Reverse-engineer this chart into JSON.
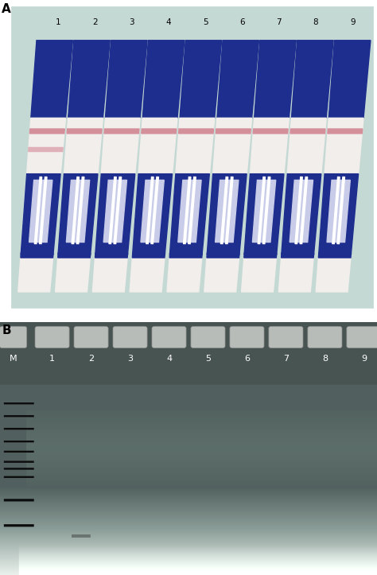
{
  "panel_A_label": "A",
  "panel_B_label": "B",
  "bg_color_A": "#c5d9d4",
  "strip_numbers": [
    "1",
    "2",
    "3",
    "4",
    "5",
    "6",
    "7",
    "8",
    "9"
  ],
  "strip_blue": "#1e2e8e",
  "strip_white": "#f2eeec",
  "strip_pink1": "#d4909a",
  "strip_pink2": "#e0b0b8",
  "gel_lane_labels": [
    "M",
    "1",
    "2",
    "3",
    "4",
    "5",
    "6",
    "7",
    "8",
    "9"
  ],
  "label_fontsize": 11,
  "lane_fontsize": 8,
  "well_color": "#b8bcb8",
  "well_edge": "#888888"
}
